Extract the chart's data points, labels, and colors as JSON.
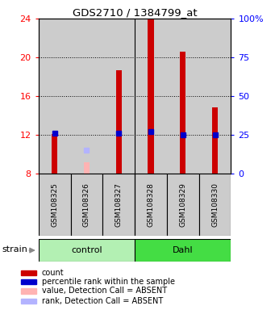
{
  "title": "GDS2710 / 1384799_at",
  "samples": [
    "GSM108325",
    "GSM108326",
    "GSM108327",
    "GSM108328",
    "GSM108329",
    "GSM108330"
  ],
  "group_labels": [
    "control",
    "Dahl"
  ],
  "group_colors": [
    "#b3f0b3",
    "#44dd44"
  ],
  "ylim_left": [
    8,
    24
  ],
  "ylim_right": [
    0,
    100
  ],
  "yticks_left": [
    8,
    12,
    16,
    20,
    24
  ],
  "yticks_right": [
    0,
    25,
    50,
    75,
    100
  ],
  "ytick_labels_right": [
    "0",
    "25",
    "50",
    "75",
    "100%"
  ],
  "bar_bottom": 8,
  "red_bars": [
    12.1,
    null,
    18.7,
    24.0,
    20.6,
    14.8
  ],
  "blue_dots": [
    12.15,
    null,
    12.2,
    12.35,
    12.0,
    12.0
  ],
  "absent_value": [
    null,
    9.2,
    null,
    null,
    null,
    null
  ],
  "absent_rank": [
    null,
    10.4,
    null,
    null,
    null,
    null
  ],
  "bar_color": "#cc0000",
  "blue_color": "#0000cc",
  "absent_bar_color": "#ffb3b3",
  "absent_rank_color": "#b3b3ff",
  "bg_color": "#cccccc",
  "strain_label": "strain",
  "legend_items": [
    {
      "color": "#cc0000",
      "label": "count"
    },
    {
      "color": "#0000cc",
      "label": "percentile rank within the sample"
    },
    {
      "color": "#ffb3b3",
      "label": "value, Detection Call = ABSENT"
    },
    {
      "color": "#b3b3ff",
      "label": "rank, Detection Call = ABSENT"
    }
  ],
  "grid_lines": [
    12,
    16,
    20
  ],
  "bar_width": 0.18
}
